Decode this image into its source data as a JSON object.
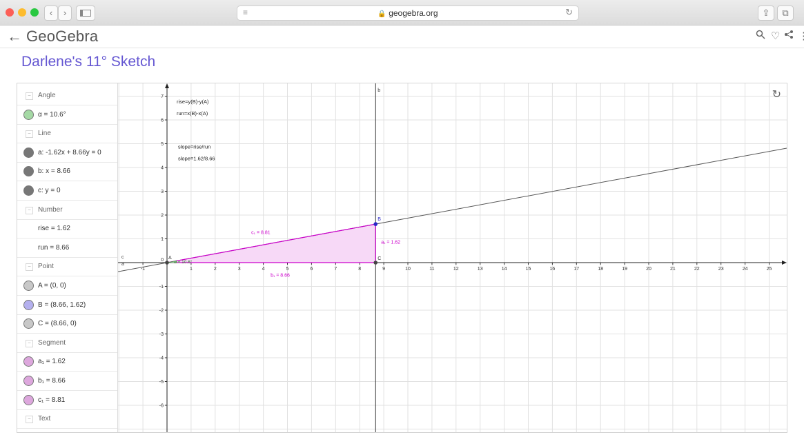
{
  "browser": {
    "url": "geogebra.org",
    "back_icon": "‹",
    "forward_icon": "›"
  },
  "header": {
    "logo": "GeoGebra",
    "back_arrow": "←"
  },
  "page_title": "Darlene's 11° Sketch",
  "algebra": [
    {
      "type": "header",
      "label": "Angle"
    },
    {
      "type": "item",
      "label": "α = 10.6°",
      "color": "#a5d9a5"
    },
    {
      "type": "header",
      "label": "Line"
    },
    {
      "type": "item",
      "label": "a: -1.62x + 8.66y = 0",
      "color": "#777777"
    },
    {
      "type": "item",
      "label": "b: x = 8.66",
      "color": "#777777"
    },
    {
      "type": "item",
      "label": "c: y = 0",
      "color": "#777777"
    },
    {
      "type": "header",
      "label": "Number"
    },
    {
      "type": "plain",
      "label": "rise = 1.62"
    },
    {
      "type": "plain",
      "label": "run = 8.66"
    },
    {
      "type": "header",
      "label": "Point"
    },
    {
      "type": "item",
      "label": "A = (0, 0)",
      "color": "#c8c8c8"
    },
    {
      "type": "item",
      "label": "B = (8.66, 1.62)",
      "color": "#b4b0ee"
    },
    {
      "type": "item",
      "label": "C = (8.66, 0)",
      "color": "#c8c8c8"
    },
    {
      "type": "header",
      "label": "Segment"
    },
    {
      "type": "item",
      "label": "a₁ = 1.62",
      "color": "#dda7dd"
    },
    {
      "type": "item",
      "label": "b₁ = 8.66",
      "color": "#dda7dd"
    },
    {
      "type": "item",
      "label": "c₁ = 8.81",
      "color": "#dda7dd"
    },
    {
      "type": "header",
      "label": "Text"
    }
  ],
  "graph": {
    "x_ticks": [
      -1,
      1,
      2,
      3,
      4,
      5,
      6,
      7,
      8,
      9,
      10,
      11,
      12,
      13,
      14,
      15,
      16,
      17,
      18,
      19,
      20,
      21,
      22,
      23,
      24,
      25
    ],
    "y_ticks": [
      -6,
      -5,
      -4,
      -3,
      -2,
      -1,
      1,
      2,
      3,
      4,
      5,
      6,
      7
    ],
    "origin_label": "0",
    "points": {
      "A": {
        "x": 0,
        "y": 0,
        "label": "A"
      },
      "B": {
        "x": 8.66,
        "y": 1.62,
        "label": "B"
      },
      "C": {
        "x": 8.66,
        "y": 0,
        "label": "C"
      }
    },
    "line_labels": {
      "a": "a",
      "b": "b",
      "c": "c"
    },
    "segment_labels": {
      "a1": "a₁ = 1.62",
      "b1": "b₁ = 8.66",
      "c1": "c₁ = 8.81"
    },
    "angle_label": "α = 10.6°",
    "texts": {
      "rise_def": "rise=y(B)-y(A)",
      "run_def": "run=x(B)-x(A)",
      "slope_def": "slope=rise/run",
      "slope_val": "slope=1.62/8.66"
    },
    "colors": {
      "segment": "#cc00cc",
      "fill": "#f7d9f7",
      "point_b": "#2a27c9",
      "axis": "#222222"
    }
  }
}
